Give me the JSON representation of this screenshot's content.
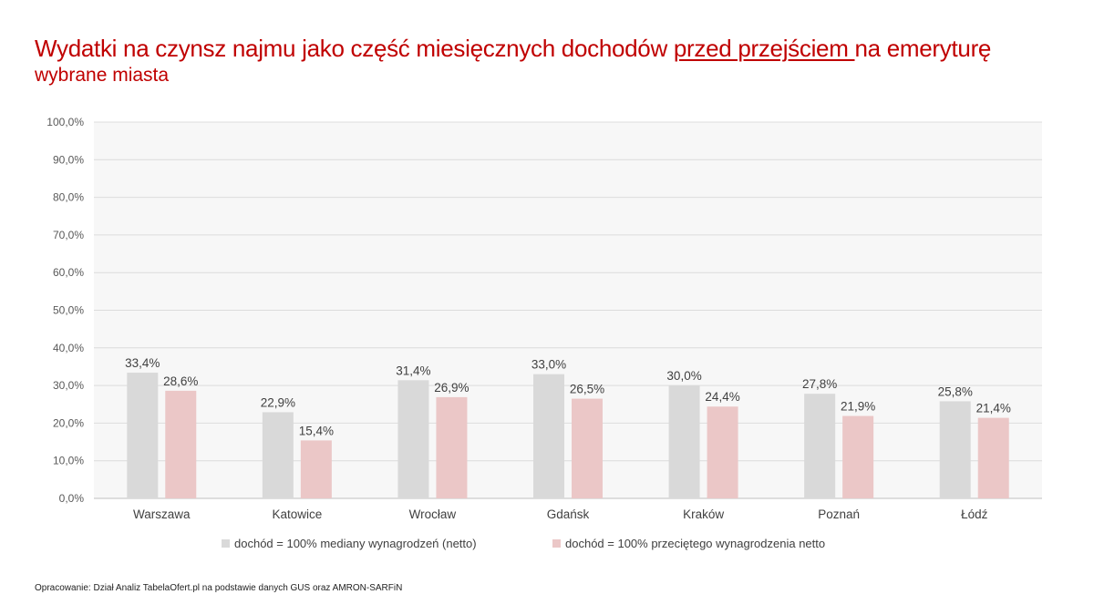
{
  "header": {
    "title_part1": "Wydatki na czynsz najmu jako część miesięcznych dochodów ",
    "title_underlined": "przed przejściem ",
    "title_part2": "na emeryturę",
    "subtitle": "wybrane miasta"
  },
  "footer": {
    "source": "Opracowanie: Dział Analiz TabelaOfert.pl na podstawie danych GUS oraz AMRON-SARFiN"
  },
  "chart_data": {
    "type": "bar",
    "title": "Wydatki na czynsz najmu jako część miesięcznych dochodów przed przejściem na emeryturę",
    "subtitle": "wybrane miasta",
    "categories": [
      "Warszawa",
      "Katowice",
      "Wrocław",
      "Gdańsk",
      "Kraków",
      "Poznań",
      "Łódź"
    ],
    "series": [
      {
        "name": "dochód = 100% mediany wynagrodzeń (netto)",
        "color": "#d9d9d9",
        "values": [
          33.4,
          22.9,
          31.4,
          33.0,
          30.0,
          27.8,
          25.8
        ],
        "labels": [
          "33,4%",
          "22,9%",
          "31,4%",
          "33,0%",
          "30,0%",
          "27,8%",
          "25,8%"
        ]
      },
      {
        "name": "dochód = 100% przeciętego wynagrodzenia netto",
        "color": "#ebc7c7",
        "values": [
          28.6,
          15.4,
          26.9,
          26.5,
          24.4,
          21.9,
          21.4
        ],
        "labels": [
          "28,6%",
          "15,4%",
          "26,9%",
          "26,5%",
          "24,4%",
          "21,9%",
          "21,4%"
        ]
      }
    ],
    "ylim": [
      0,
      100
    ],
    "yticks": [
      "0,0%",
      "10,0%",
      "20,0%",
      "30,0%",
      "40,0%",
      "50,0%",
      "60,0%",
      "70,0%",
      "80,0%",
      "90,0%",
      "100,0%"
    ],
    "xlabel": "",
    "ylabel": "",
    "grid": true,
    "legend_position": "bottom"
  }
}
